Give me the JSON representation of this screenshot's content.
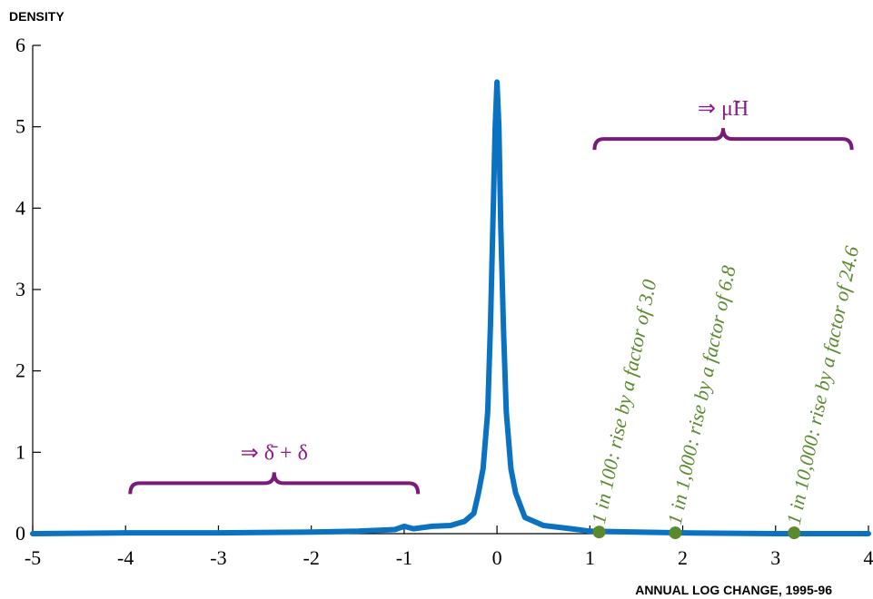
{
  "chart_data": {
    "type": "line",
    "xlabel": "ANNUAL LOG CHANGE, 1995-96",
    "ylabel": "DENSITY",
    "xlim": [
      -5,
      4
    ],
    "ylim": [
      0,
      6
    ],
    "x_ticks": [
      "-5",
      "-4",
      "-3",
      "-2",
      "-1",
      "0",
      "1",
      "2",
      "3",
      "4"
    ],
    "y_ticks": [
      "0",
      "1",
      "2",
      "3",
      "4",
      "5",
      "6"
    ],
    "series": [
      {
        "x": [
          -5.0,
          -4.0,
          -3.0,
          -2.0,
          -1.5,
          -1.1,
          -1.0,
          -0.9,
          -0.7,
          -0.5,
          -0.35,
          -0.25,
          -0.2,
          -0.15,
          -0.1,
          -0.07,
          -0.04,
          -0.02,
          0.0,
          0.02,
          0.04,
          0.07,
          0.1,
          0.15,
          0.2,
          0.3,
          0.5,
          0.8,
          1.0,
          1.5,
          2.0,
          3.0,
          4.0
        ],
        "y": [
          0.0,
          0.01,
          0.01,
          0.02,
          0.03,
          0.05,
          0.09,
          0.06,
          0.09,
          0.1,
          0.15,
          0.25,
          0.5,
          0.8,
          1.5,
          2.6,
          4.0,
          5.0,
          5.55,
          5.0,
          3.8,
          2.5,
          1.5,
          0.8,
          0.5,
          0.2,
          0.1,
          0.06,
          0.03,
          0.02,
          0.01,
          0.0,
          0.0
        ],
        "color": "#0a72c0"
      }
    ],
    "points": [
      {
        "x": 1.1,
        "y": 0.02,
        "label": "1 in 100: rise by a factor of 3.0"
      },
      {
        "x": 1.92,
        "y": 0.01,
        "label": "1 in 1,000: rise by a factor of 6.8"
      },
      {
        "x": 3.2,
        "y": 0.01,
        "label": "1 in 10,000: rise by a factor of 24.6"
      }
    ],
    "point_color": "#5b8a2e",
    "braces": [
      {
        "x_start": -3.95,
        "x_end": -0.85,
        "y": 0.62,
        "label": "⇒ δ̄ + δ"
      },
      {
        "x_start": 1.05,
        "x_end": 3.82,
        "y": 4.85,
        "label": "⇒ μ̃H"
      }
    ],
    "brace_color": "#7a1a7a"
  }
}
